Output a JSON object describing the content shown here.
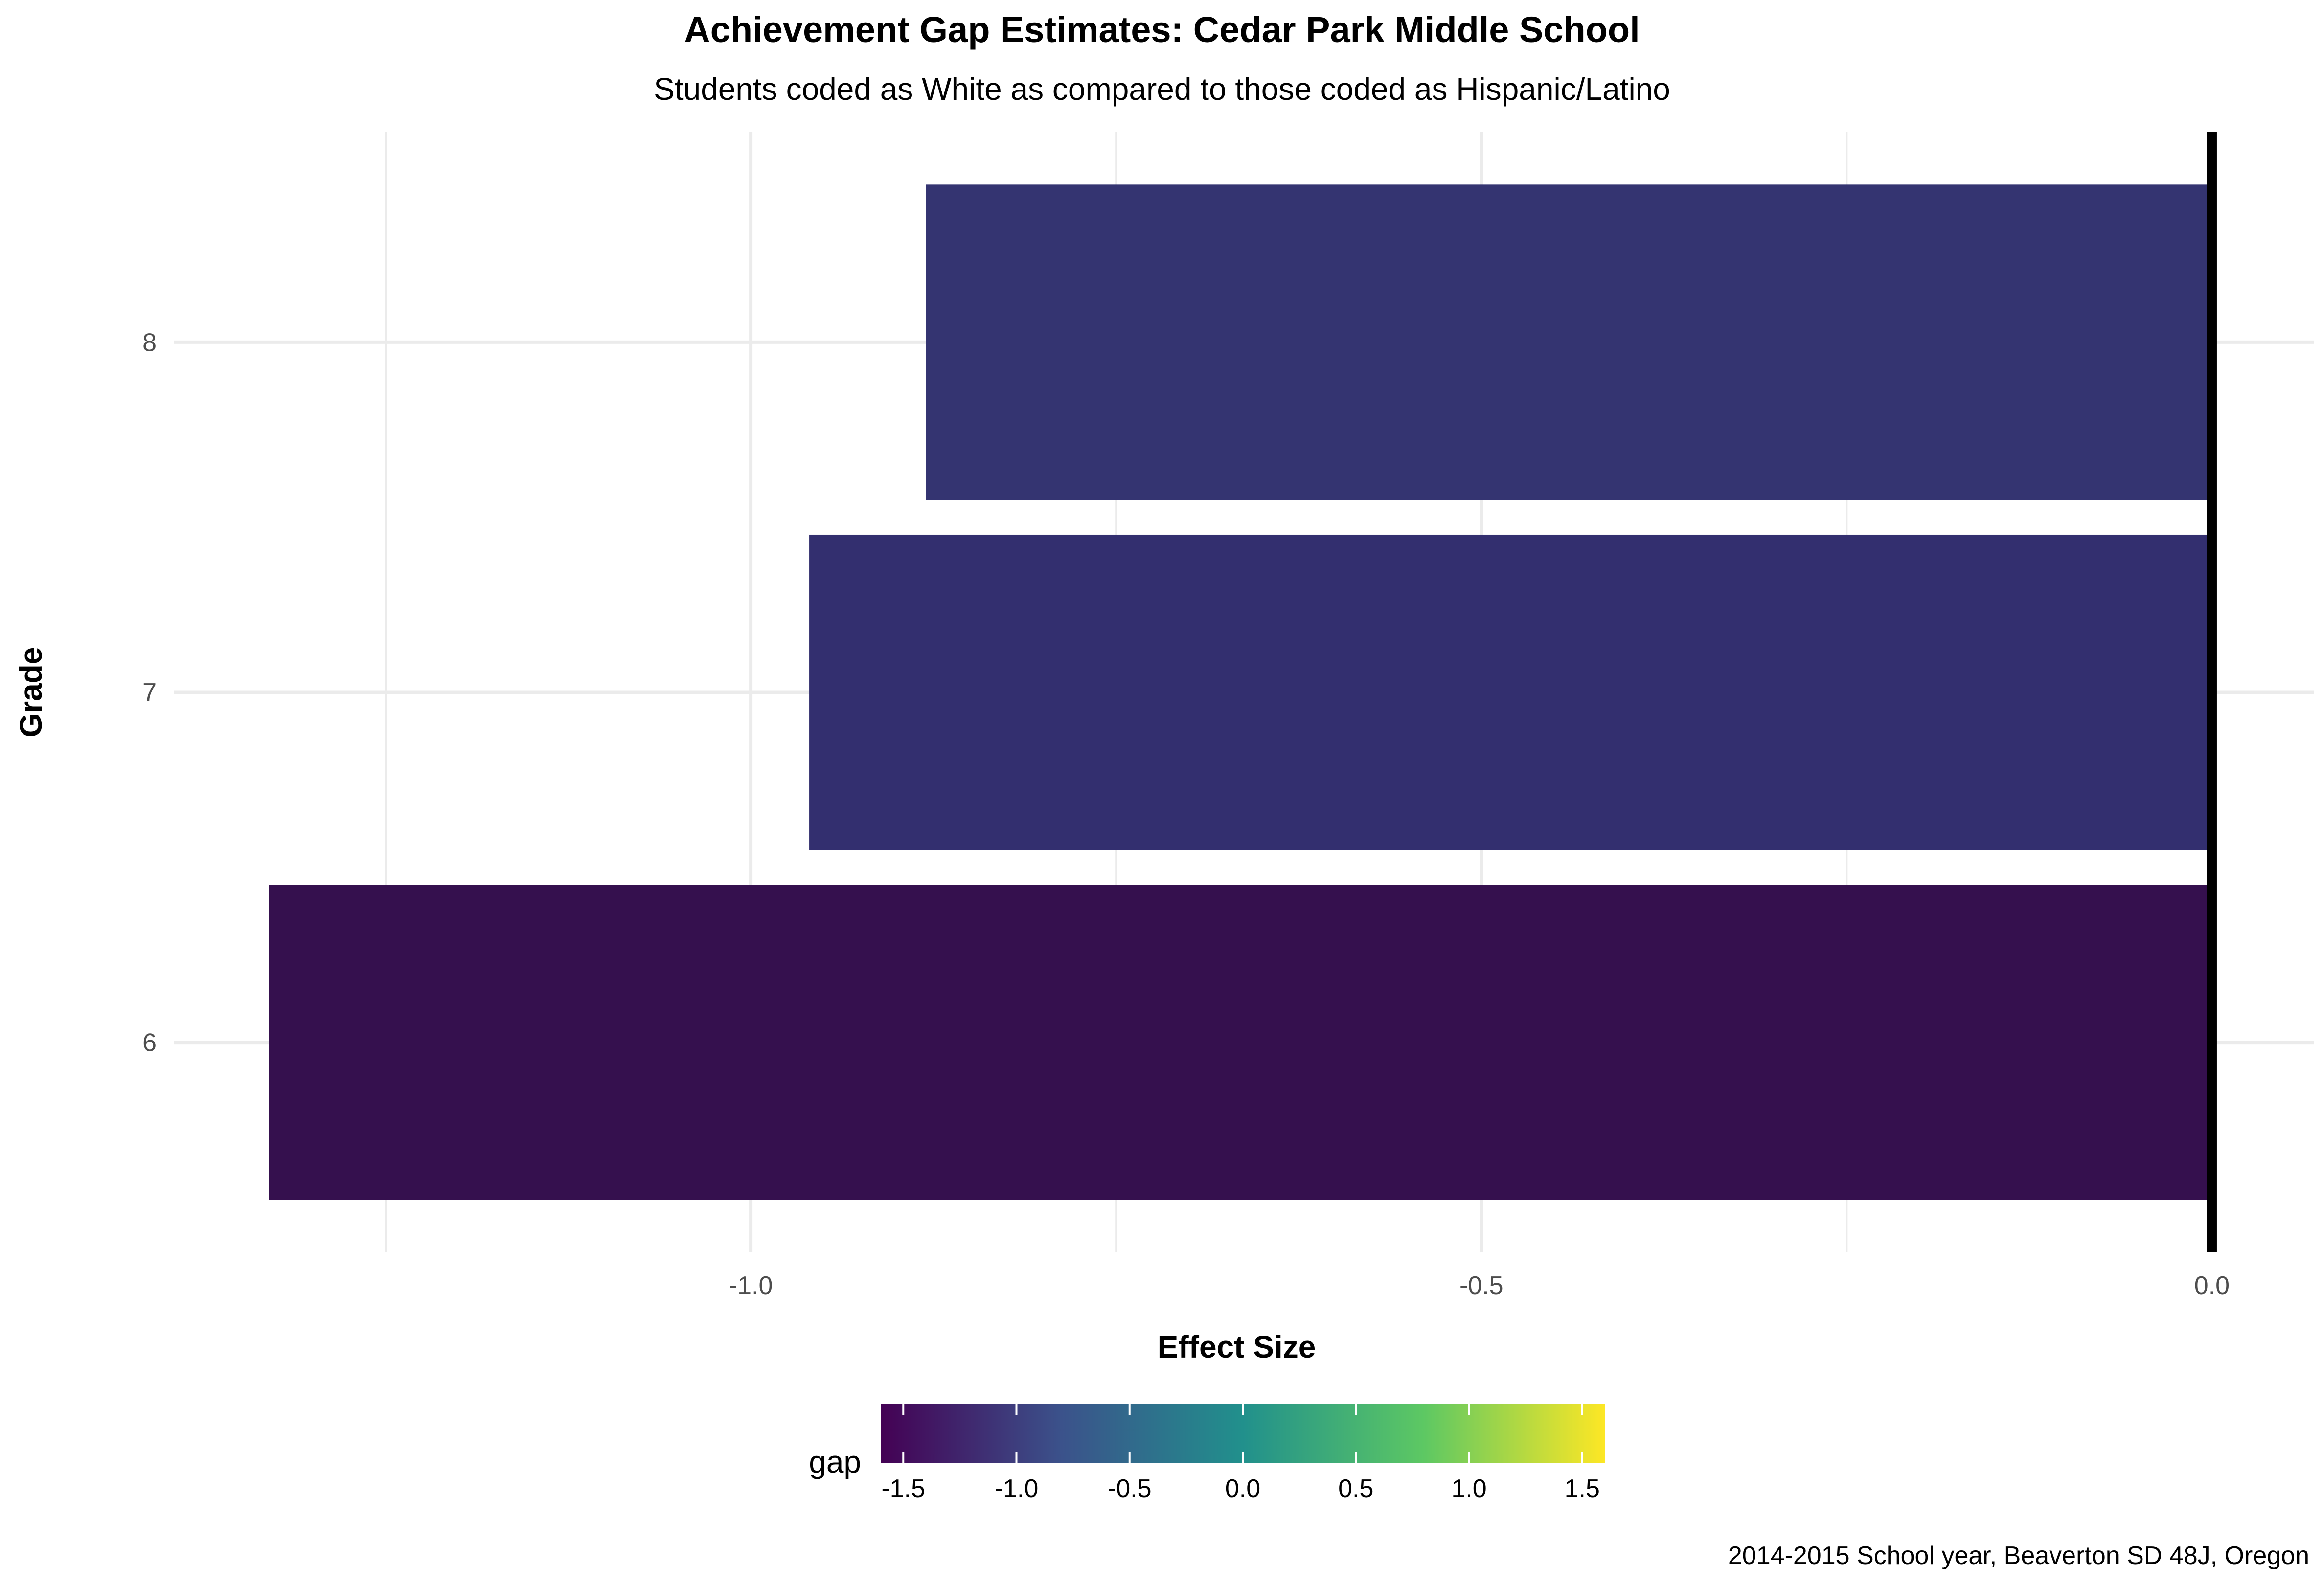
{
  "chart_data": {
    "type": "bar",
    "orientation": "horizontal",
    "title": "Achievement Gap Estimates: Cedar Park Middle School",
    "subtitle": "Students coded as White as compared to those coded as Hispanic/Latino",
    "caption": "2014-2015 School year, Beaverton SD 48J, Oregon",
    "xlabel": "Effect Size",
    "ylabel": "Grade",
    "categories": [
      "6",
      "7",
      "8"
    ],
    "values": [
      -1.33,
      -0.96,
      -0.88
    ],
    "bar_colors": [
      "#35104e",
      "#332f6f",
      "#343471"
    ],
    "xlim": [
      -1.395,
      0.07
    ],
    "x_ticks": [
      -1.0,
      -0.5,
      0.0
    ],
    "x_tick_labels": [
      "-1.0",
      "-0.5",
      "0.0"
    ],
    "reference_line_x": 0,
    "grid": true,
    "legend": {
      "title": "gap",
      "type": "colorbar",
      "position": "bottom",
      "range": [
        -1.6,
        1.6
      ],
      "ticks": [
        -1.5,
        -1.0,
        -0.5,
        0.0,
        0.5,
        1.0,
        1.5
      ],
      "tick_labels": [
        "-1.5",
        "-1.0",
        "-0.5",
        "0.0",
        "0.5",
        "1.0",
        "1.5"
      ],
      "palette": [
        "#440154",
        "#3b528b",
        "#21908c",
        "#5dc863",
        "#fde725"
      ]
    }
  }
}
